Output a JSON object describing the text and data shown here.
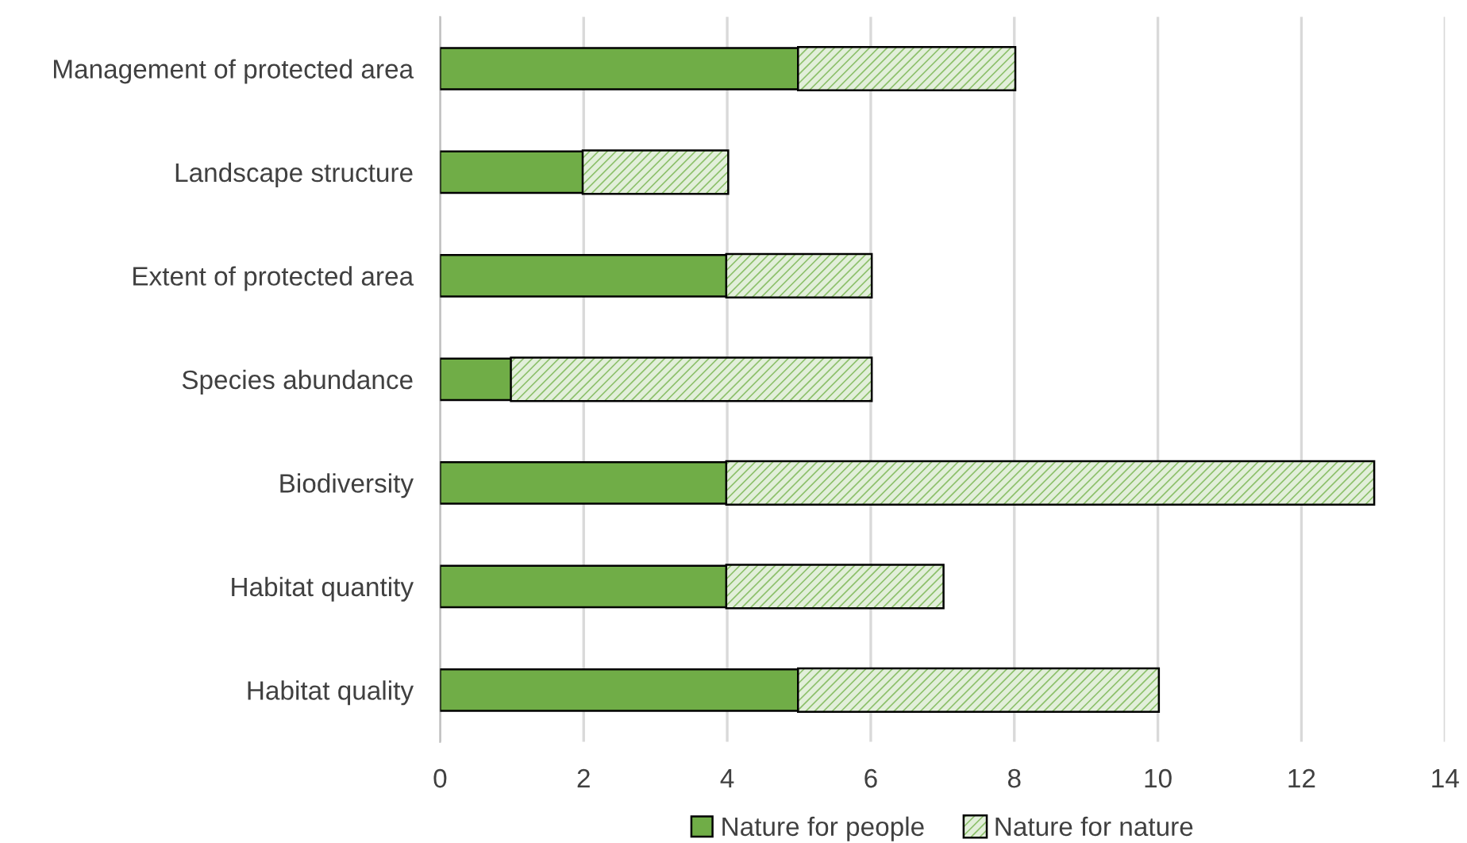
{
  "chart_data": {
    "type": "bar",
    "orientation": "horizontal",
    "stacked": true,
    "categories": [
      "Management of protected area",
      "Landscape structure",
      "Extent of protected area",
      "Species abundance",
      "Biodiversity",
      "Habitat quantity",
      "Habitat quality"
    ],
    "series": [
      {
        "name": "Nature for people",
        "color": "#70ad47",
        "values": [
          5,
          2,
          4,
          1,
          4,
          4,
          5
        ]
      },
      {
        "name": "Nature for nature",
        "color": "#e2efda",
        "values": [
          3,
          2,
          2,
          5,
          9,
          3,
          5
        ]
      }
    ],
    "xlim": [
      0,
      14
    ],
    "xticks": [
      0,
      2,
      4,
      6,
      8,
      10,
      12,
      14
    ],
    "grid": "x",
    "legend": "bottom"
  }
}
